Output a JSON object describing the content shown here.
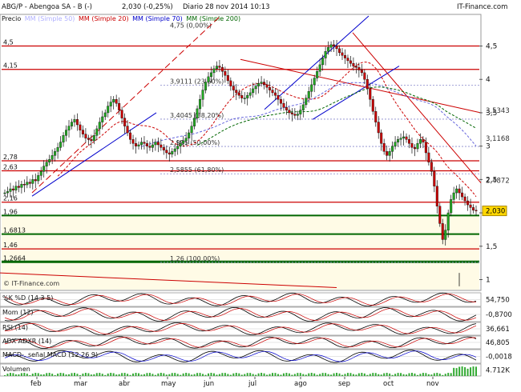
{
  "header": {
    "symbol": "ABG/P - Abengoa SA - B (-)",
    "last": "2,030 (-0,25%)",
    "period": "Diario 28 nov 2014 10:13",
    "brand": "IT-Finance.com"
  },
  "price_legend": {
    "label": "Precio",
    "items": [
      {
        "text": "MM (Simple 50)",
        "color": "#b0b0ff"
      },
      {
        "text": "MM (Simple 20)",
        "color": "#cc0000"
      },
      {
        "text": "MM (Simple 70)",
        "color": "#0000cc"
      },
      {
        "text": "MM (Simple 200)",
        "color": "#006600"
      }
    ]
  },
  "watermark": "© IT-Finance.com",
  "indicators": {
    "k": {
      "label": "%K",
      "params": "%D (14 3 5)",
      "value": "54,750"
    },
    "mom": {
      "label": "Mom (12)",
      "value": "-0,8700"
    },
    "rsi": {
      "label": "RSI (14)",
      "value": "36,661"
    },
    "adx": {
      "label": "ADX",
      "params": "ADXR (14)",
      "value": "46,805"
    },
    "macd": {
      "label": "MACD-, señal",
      "params": "MACD (12 26 9)",
      "value": "-0,0018"
    },
    "vol": {
      "label": "Volumen",
      "value": "4.712K"
    }
  },
  "colors": {
    "up": "#22aa22",
    "down": "#cc0000",
    "fib": "#cc0000",
    "trend": "#0000cc",
    "support": "#006600"
  },
  "chart_data": {
    "type": "candlestick",
    "title": "ABG/P - Abengoa SA - B (-)",
    "last_price": 2.03,
    "ylim": [
      0.85,
      4.95
    ],
    "y_ticks": [
      "1",
      "1,5",
      "2",
      "2,5",
      "3",
      "3,5",
      "4",
      "4,5"
    ],
    "x_ticks": [
      "feb",
      "mar",
      "abr",
      "may",
      "jun",
      "jul",
      "ago",
      "sep",
      "oct",
      "nov"
    ],
    "horizontal_levels": [
      {
        "label": "4,5",
        "value": 4.5
      },
      {
        "label": "4,15",
        "value": 4.15
      },
      {
        "label": "2,78",
        "value": 2.78
      },
      {
        "label": "2,63",
        "value": 2.63
      },
      {
        "label": "2,16",
        "value": 2.16
      },
      {
        "label": "1,96",
        "value": 1.96
      },
      {
        "label": "1,6813",
        "value": 1.6813
      },
      {
        "label": "1,46",
        "value": 1.46
      },
      {
        "label": "1,2664",
        "value": 1.2664
      }
    ],
    "fibonacci": [
      {
        "label": "4,75 (0,00%)",
        "value": 4.75
      },
      {
        "label": "3,9111 (23,60%)",
        "value": 3.9111
      },
      {
        "label": "3,4045 (38,20%)",
        "value": 3.4045
      },
      {
        "label": "2,995 (50,00%)",
        "value": 2.995
      },
      {
        "label": "2,5855 (61,80%)",
        "value": 2.5855
      },
      {
        "label": "1,26 (100,00%)",
        "value": 1.26
      }
    ],
    "right_labels": [
      {
        "label": "3,5343",
        "value": 3.5343
      },
      {
        "label": "3,1168",
        "value": 3.1168
      },
      {
        "label": "2,4872",
        "value": 2.4872
      },
      {
        "label": "2,030",
        "value": 2.03
      }
    ],
    "series": [
      {
        "name": "Precio",
        "values": [
          2.3,
          2.32,
          2.36,
          2.34,
          2.4,
          2.38,
          2.43,
          2.42,
          2.46,
          2.44,
          2.5,
          2.48,
          2.56,
          2.62,
          2.7,
          2.76,
          2.8,
          2.86,
          2.92,
          2.98,
          3.06,
          3.16,
          3.24,
          3.3,
          3.36,
          3.4,
          3.32,
          3.24,
          3.18,
          3.12,
          3.1,
          3.08,
          3.16,
          3.26,
          3.36,
          3.44,
          3.5,
          3.6,
          3.66,
          3.7,
          3.64,
          3.54,
          3.42,
          3.3,
          3.2,
          3.1,
          3.04,
          3.0,
          3.02,
          3.06,
          3.04,
          3.0,
          2.98,
          3.02,
          3.06,
          3.02,
          2.98,
          2.94,
          2.9,
          2.88,
          2.92,
          2.96,
          3.0,
          3.04,
          3.08,
          3.12,
          3.2,
          3.3,
          3.42,
          3.56,
          3.7,
          3.84,
          3.96,
          4.04,
          4.1,
          4.16,
          4.2,
          4.18,
          4.12,
          4.06,
          3.98,
          3.9,
          3.84,
          3.8,
          3.76,
          3.72,
          3.72,
          3.76,
          3.8,
          3.86,
          3.9,
          3.94,
          3.96,
          3.92,
          3.88,
          3.84,
          3.8,
          3.76,
          3.7,
          3.64,
          3.58,
          3.54,
          3.5,
          3.48,
          3.46,
          3.48,
          3.54,
          3.62,
          3.72,
          3.82,
          3.92,
          4.02,
          4.12,
          4.22,
          4.32,
          4.42,
          4.48,
          4.52,
          4.5,
          4.46,
          4.4,
          4.36,
          4.32,
          4.28,
          4.24,
          4.2,
          4.18,
          4.14,
          4.1,
          4.0,
          3.86,
          3.7,
          3.52,
          3.36,
          3.2,
          3.04,
          2.92,
          2.86,
          2.92,
          3.0,
          3.06,
          3.1,
          3.12,
          3.14,
          3.1,
          3.04,
          2.98,
          2.96,
          3.04,
          3.1,
          3.06,
          2.9,
          2.76,
          2.62,
          2.4,
          2.1,
          1.84,
          1.6,
          1.74,
          2.0,
          2.2,
          2.3,
          2.36,
          2.3,
          2.24,
          2.18,
          2.12,
          2.08,
          2.04,
          2.03
        ]
      }
    ]
  }
}
